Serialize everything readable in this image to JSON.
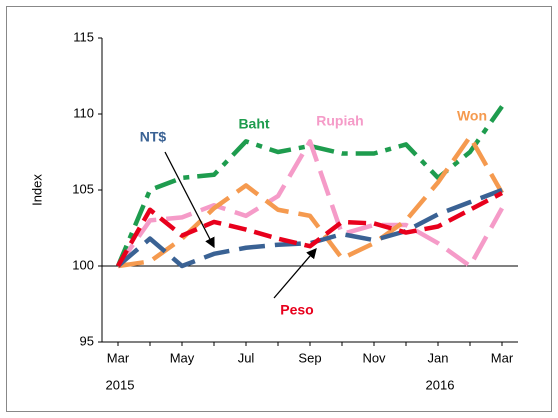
{
  "chart_data": {
    "type": "line",
    "y_label": "Index",
    "categories": [
      "Mar",
      null,
      "May",
      null,
      "Jul",
      null,
      "Sep",
      null,
      "Nov",
      null,
      "Jan",
      null,
      "Mar"
    ],
    "years": [
      "2015",
      null,
      null,
      null,
      null,
      null,
      null,
      null,
      null,
      null,
      "2016",
      null,
      null
    ],
    "ylim": [
      95,
      115
    ],
    "yticks": [
      95,
      100,
      105,
      110,
      115
    ],
    "reference_line": 100,
    "series": [
      {
        "name": "Baht",
        "color": "#1e9c4e",
        "dash": "dashdot",
        "values": [
          100,
          105,
          105.8,
          106,
          108.2,
          107.5,
          107.9,
          107.4,
          107.4,
          108,
          105.8,
          107.5,
          110.5
        ]
      },
      {
        "name": "Rupiah",
        "color": "#f59bc8",
        "dash": "longdash",
        "values": [
          100,
          103,
          103.2,
          104,
          103.3,
          104.6,
          108.2,
          102.1,
          102.7,
          102.7,
          101.5,
          100,
          103.8
        ]
      },
      {
        "name": "Won",
        "color": "#f59a4f",
        "dash": "longdash",
        "values": [
          100,
          100.3,
          101.8,
          103.8,
          105.3,
          103.7,
          103.3,
          100.5,
          101.5,
          103,
          105.5,
          108.5,
          104.8
        ]
      },
      {
        "name": "NT$",
        "color": "#3a6294",
        "dash": "longdash",
        "values": [
          100,
          101.8,
          100,
          100.8,
          101.2,
          101.4,
          101.5,
          102.1,
          101.7,
          102.3,
          103.4,
          104.2,
          105
        ]
      },
      {
        "name": "Peso",
        "color": "#e8001c",
        "dash": "dash",
        "values": [
          100,
          103.7,
          102,
          102.9,
          102.4,
          101.8,
          101.3,
          102.9,
          102.8,
          102.2,
          102.6,
          103.7,
          104.8
        ]
      }
    ]
  }
}
